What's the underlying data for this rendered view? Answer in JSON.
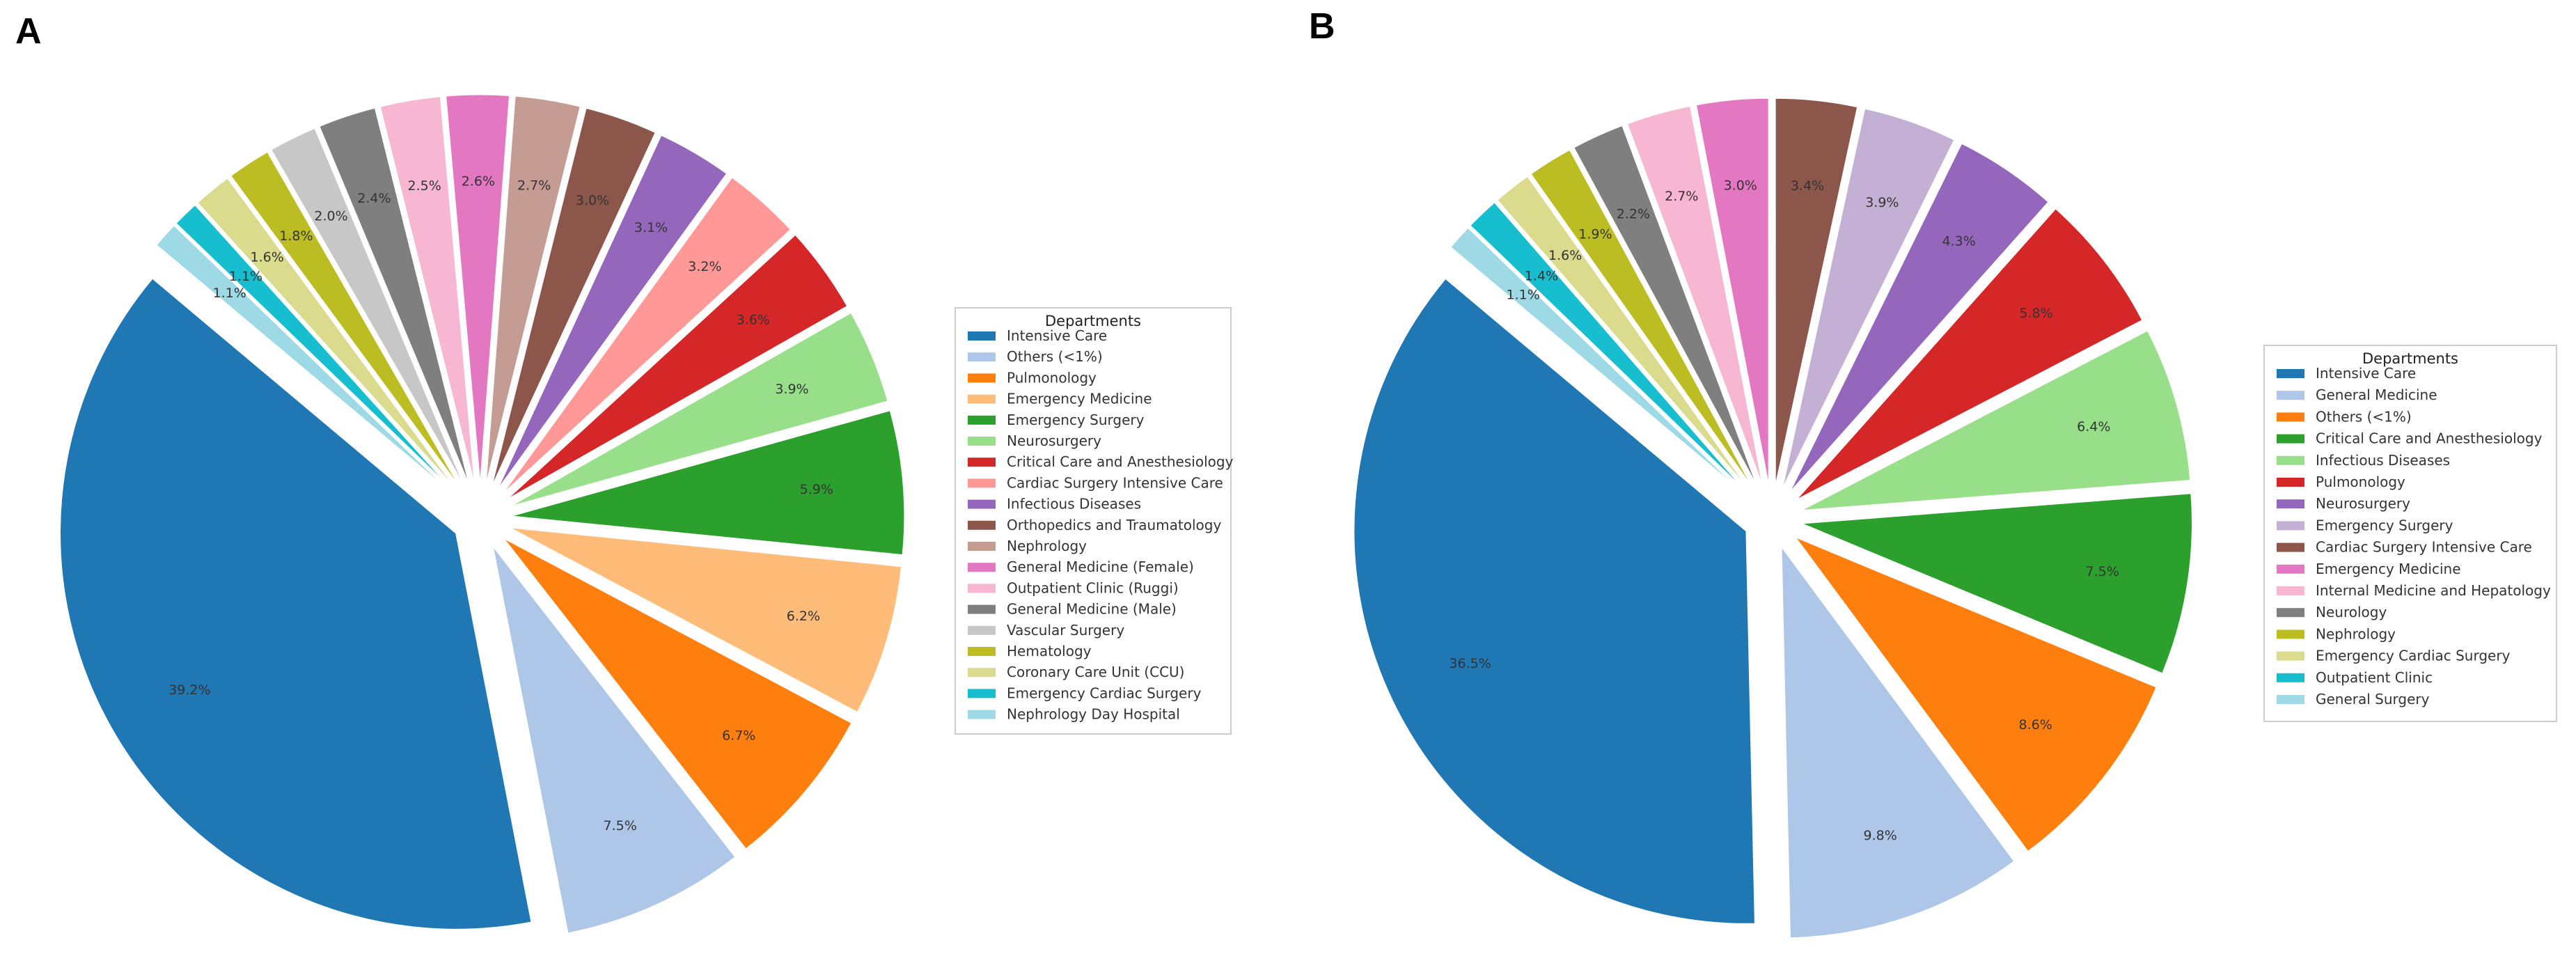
{
  "chart_data": [
    {
      "type": "pie",
      "panel_label": "A",
      "legend_title": "Departments",
      "legend_position": "right",
      "slices": [
        {
          "label": "Intensive Care",
          "value": 39.2,
          "pct_label": "39.2%",
          "color": "#1f77b4"
        },
        {
          "label": "Others (<1%)",
          "value": 7.5,
          "pct_label": "7.5%",
          "color": "#aec7e8"
        },
        {
          "label": "Pulmonology",
          "value": 6.7,
          "pct_label": "6.7%",
          "color": "#ff7f0e"
        },
        {
          "label": "Emergency Medicine",
          "value": 6.2,
          "pct_label": "6.2%",
          "color": "#ffbb78"
        },
        {
          "label": "Emergency Surgery",
          "value": 5.9,
          "pct_label": "5.9%",
          "color": "#2ca02c"
        },
        {
          "label": "Neurosurgery",
          "value": 3.9,
          "pct_label": "3.9%",
          "color": "#98df8a"
        },
        {
          "label": "Critical Care and Anesthesiology",
          "value": 3.6,
          "pct_label": "3.6%",
          "color": "#d62728"
        },
        {
          "label": "Cardiac Surgery Intensive Care",
          "value": 3.2,
          "pct_label": "3.2%",
          "color": "#ff9896"
        },
        {
          "label": "Infectious Diseases",
          "value": 3.1,
          "pct_label": "3.1%",
          "color": "#9467bd"
        },
        {
          "label": "Orthopedics and Traumatology",
          "value": 3.0,
          "pct_label": "3.0%",
          "color": "#8c564b"
        },
        {
          "label": "Nephrology",
          "value": 2.7,
          "pct_label": "2.7%",
          "color": "#c49c94"
        },
        {
          "label": "General Medicine (Female)",
          "value": 2.6,
          "pct_label": "2.6%",
          "color": "#e377c2"
        },
        {
          "label": "Outpatient Clinic (Ruggi)",
          "value": 2.5,
          "pct_label": "2.5%",
          "color": "#f7b6d2"
        },
        {
          "label": "General Medicine (Male)",
          "value": 2.4,
          "pct_label": "2.4%",
          "color": "#7f7f7f"
        },
        {
          "label": "Vascular Surgery",
          "value": 2.0,
          "pct_label": "2.0%",
          "color": "#c7c7c7"
        },
        {
          "label": "Hematology",
          "value": 1.8,
          "pct_label": "1.8%",
          "color": "#bcbd22"
        },
        {
          "label": "Coronary Care Unit (CCU)",
          "value": 1.6,
          "pct_label": "1.6%",
          "color": "#dbdb8d"
        },
        {
          "label": "Emergency Cardiac Surgery",
          "value": 1.1,
          "pct_label": "1.1%",
          "color": "#17becf"
        },
        {
          "label": "Nephrology Day Hospital",
          "value": 1.1,
          "pct_label": "1.1%",
          "color": "#9edae5"
        }
      ]
    },
    {
      "type": "pie",
      "panel_label": "B",
      "legend_title": "Departments",
      "legend_position": "right",
      "slices": [
        {
          "label": "Intensive Care",
          "value": 36.5,
          "pct_label": "36.5%",
          "color": "#1f77b4"
        },
        {
          "label": "General Medicine",
          "value": 9.8,
          "pct_label": "9.8%",
          "color": "#aec7e8"
        },
        {
          "label": "Others (<1%)",
          "value": 8.6,
          "pct_label": "8.6%",
          "color": "#ff7f0e"
        },
        {
          "label": "Critical Care and Anesthesiology",
          "value": 7.5,
          "pct_label": "7.5%",
          "color": "#2ca02c"
        },
        {
          "label": "Infectious Diseases",
          "value": 6.4,
          "pct_label": "6.4%",
          "color": "#98df8a"
        },
        {
          "label": "Pulmonology",
          "value": 5.8,
          "pct_label": "5.8%",
          "color": "#d62728"
        },
        {
          "label": "Neurosurgery",
          "value": 4.3,
          "pct_label": "4.3%",
          "color": "#9467bd"
        },
        {
          "label": "Emergency Surgery",
          "value": 3.9,
          "pct_label": "3.9%",
          "color": "#c5b0d5"
        },
        {
          "label": "Cardiac Surgery Intensive Care",
          "value": 3.4,
          "pct_label": "3.4%",
          "color": "#8c564b"
        },
        {
          "label": "Emergency Medicine",
          "value": 3.0,
          "pct_label": "3.0%",
          "color": "#e377c2"
        },
        {
          "label": "Internal Medicine and Hepatology",
          "value": 2.7,
          "pct_label": "2.7%",
          "color": "#f7b6d2"
        },
        {
          "label": "Neurology",
          "value": 2.2,
          "pct_label": "2.2%",
          "color": "#7f7f7f"
        },
        {
          "label": "Nephrology",
          "value": 1.9,
          "pct_label": "1.9%",
          "color": "#bcbd22"
        },
        {
          "label": "Emergency Cardiac Surgery",
          "value": 1.6,
          "pct_label": "1.6%",
          "color": "#dbdb8d"
        },
        {
          "label": "Outpatient Clinic",
          "value": 1.4,
          "pct_label": "1.4%",
          "color": "#17becf"
        },
        {
          "label": "General Surgery",
          "value": 1.1,
          "pct_label": "1.1%",
          "color": "#9edae5"
        }
      ]
    }
  ]
}
